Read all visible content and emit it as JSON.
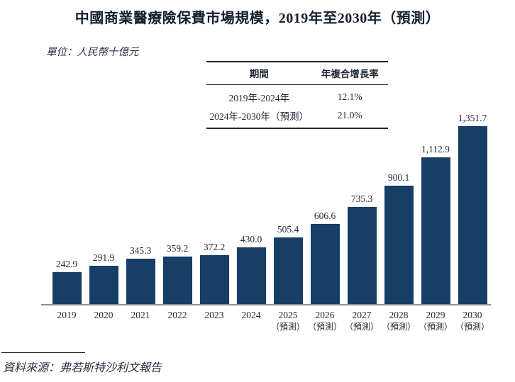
{
  "chart_data": {
    "type": "bar",
    "title": "中國商業醫療險保費市場規模，2019年至2030年（預測）",
    "unit_label": "單位：人民幣十億元",
    "categories": [
      "2019",
      "2020",
      "2021",
      "2022",
      "2023",
      "2024",
      "2025",
      "2026",
      "2027",
      "2028",
      "2029",
      "2030"
    ],
    "forecast_suffix": "（預測）",
    "forecast_from_index": 6,
    "values": [
      242.9,
      291.9,
      345.3,
      359.2,
      372.2,
      430.0,
      505.4,
      606.6,
      735.3,
      900.1,
      1112.9,
      1351.7
    ],
    "value_labels": [
      "242.9",
      "291.9",
      "345.3",
      "359.2",
      "372.2",
      "430.0",
      "505.4",
      "606.6",
      "735.3",
      "900.1",
      "1,112.9",
      "1,351.7"
    ],
    "ylim": [
      0,
      1400
    ],
    "grid": "off",
    "legend": "none",
    "bar_color": "#173E65",
    "axis_color": "#8f8f8f",
    "cagr_table": {
      "headers": [
        "期間",
        "年複合增長率"
      ],
      "rows": [
        {
          "period": "2019年-2024年",
          "cagr": "12.1%"
        },
        {
          "period": "2024年-2030年（預測）",
          "cagr": "21.0%"
        }
      ]
    },
    "source": "資料來源：弗若斯特沙利文報告"
  }
}
